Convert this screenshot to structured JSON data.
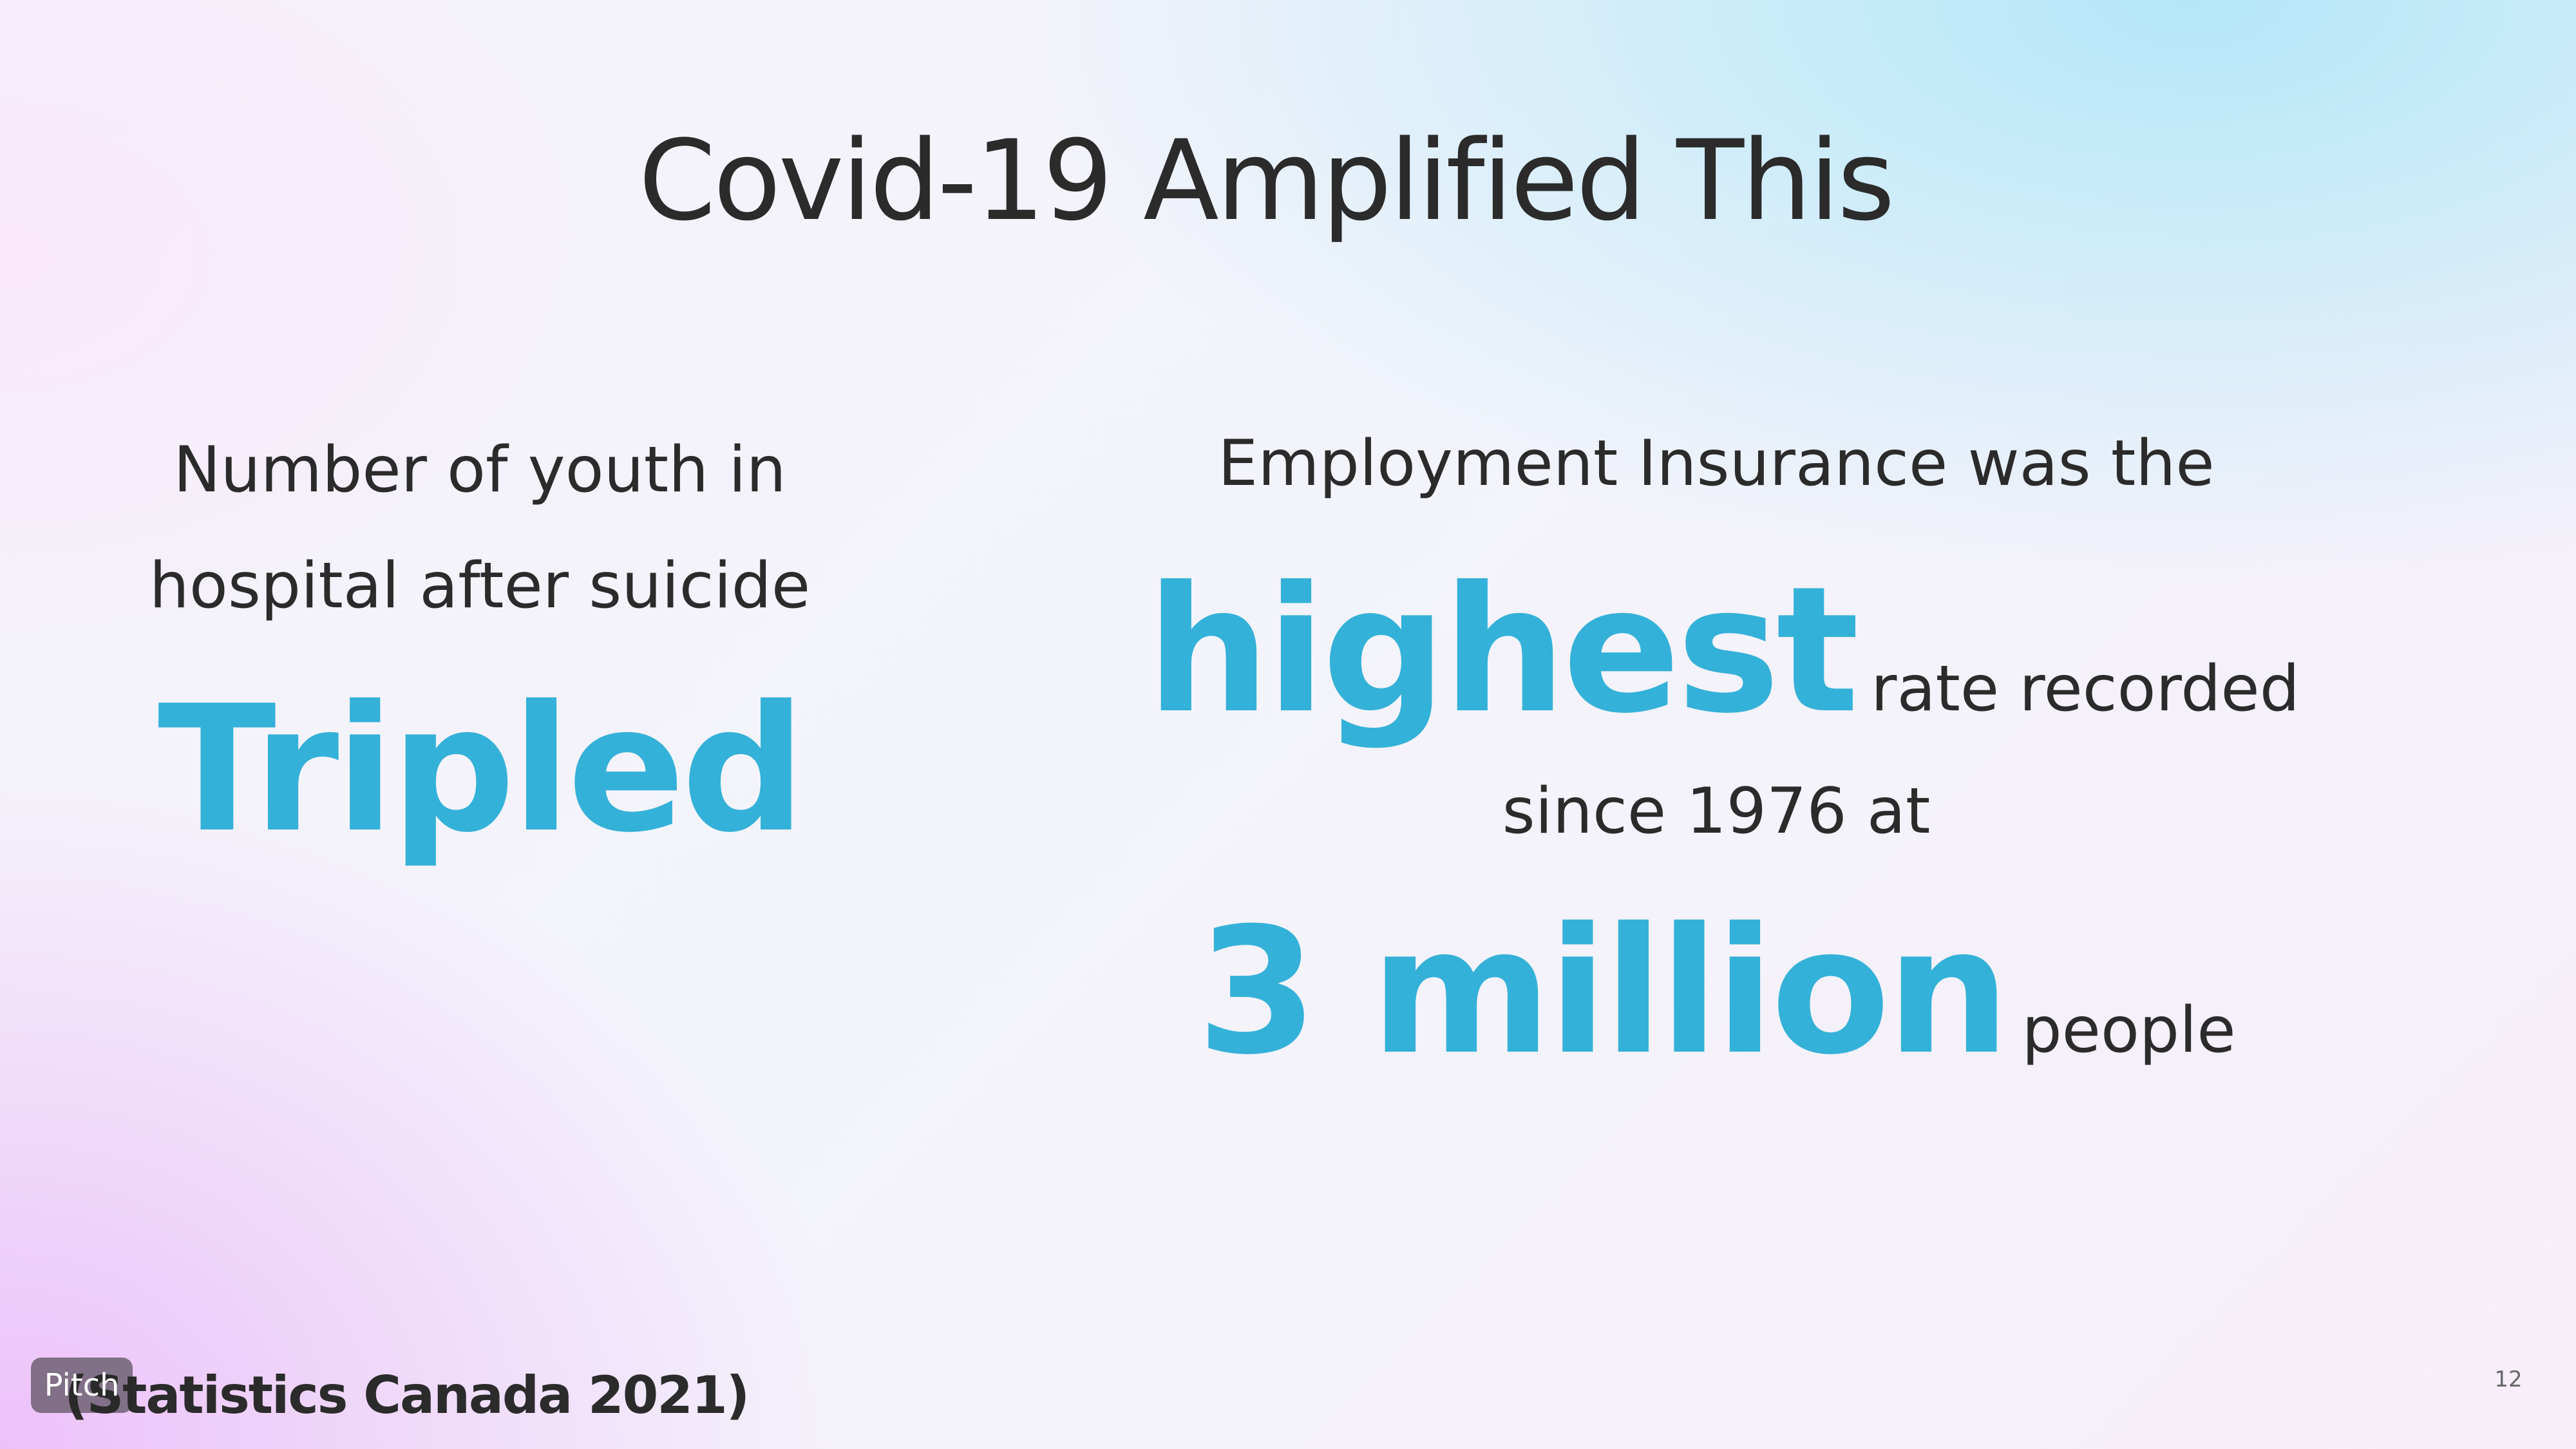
{
  "slide": {
    "title": "Covid-19 Amplified This",
    "left": {
      "desc_line1": "Number of youth in",
      "desc_line2": "hospital after suicide",
      "highlight": "Tripled"
    },
    "right": {
      "line1": "Employment Insurance was the",
      "highlight1": "highest",
      "after_highlight1": "rate recorded",
      "line3": "since 1976 at",
      "highlight2": "3 million",
      "after_highlight2": "people"
    },
    "source": "(Statistics Canada 2021)",
    "badge": "Pitch",
    "page_number": "12"
  },
  "colors": {
    "accent": "#34b1d8",
    "text": "#2b2b2b"
  }
}
